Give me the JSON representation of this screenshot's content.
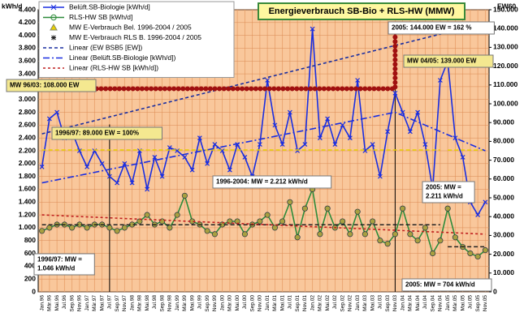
{
  "chart_data": {
    "type": "line",
    "title": "Energieverbrauch  SB-Bio + RLS-HW (MMW)",
    "y_label": "kWh/d",
    "y2_label": "EW60",
    "grid": true,
    "legend": "top-left",
    "categories": [
      "Jan.96",
      "Mär.96",
      "Mai.96",
      "Jul.96",
      "Sep.96",
      "Nov.96",
      "Jan.97",
      "Mär.97",
      "Mai.97",
      "Jul.97",
      "Sep.97",
      "Nov.97",
      "Jan.98",
      "Mär.98",
      "Mai.98",
      "Jul.98",
      "Sep.98",
      "Nov.98",
      "Jan.99",
      "Mär.99",
      "Mai.99",
      "Jul.99",
      "Sep.99",
      "Nov.99",
      "Jan.00",
      "Mär.00",
      "Mai.00",
      "Jul.00",
      "Sep.00",
      "Nov.00",
      "Jan.01",
      "Mär.01",
      "Mai.01",
      "Jul.01",
      "Sep.01",
      "Nov.01",
      "Jan.02",
      "Mär.02",
      "Mai.02",
      "Jul.02",
      "Sep.02",
      "Nov.02",
      "Jan.03",
      "Mär.03",
      "Mai.03",
      "Jul.03",
      "Sep.03",
      "Nov.03",
      "Jan.04",
      "Mär.04",
      "Mai.04",
      "Jul.04",
      "Sep.04",
      "Nov.04",
      "Jan.05",
      "Mär.05",
      "Mai.05",
      "Jul.05",
      "Sep.05",
      "Nov.05"
    ],
    "ylim": [
      0,
      4400
    ],
    "yticks": [
      0,
      200,
      400,
      600,
      800,
      {
        "value": 1000,
        "label": "1.000"
      },
      {
        "value": 1200,
        "label": "1.200"
      },
      {
        "value": 1400,
        "label": "1.400"
      },
      {
        "value": 1600,
        "label": "1.600"
      },
      {
        "value": 1800,
        "label": "1.800"
      },
      {
        "value": 2000,
        "label": "2.000"
      },
      {
        "value": 2200,
        "label": "2.200"
      },
      {
        "value": 2400,
        "label": "2.400"
      },
      {
        "value": 2600,
        "label": "2.600"
      },
      {
        "value": 2800,
        "label": "2.800"
      },
      {
        "value": 3000,
        "label": "3.000"
      },
      {
        "value": 3200,
        "label": "3.200"
      },
      {
        "value": 3400,
        "label": "3.400"
      },
      {
        "value": 3600,
        "label": "3.600"
      },
      {
        "value": 3800,
        "label": "3.800"
      },
      {
        "value": 4000,
        "label": "4.000"
      },
      {
        "value": 4200,
        "label": "4.200"
      },
      {
        "value": 4400,
        "label": "4.400"
      }
    ],
    "y2lim": [
      0,
      150000
    ],
    "y2ticks": [
      0,
      {
        "value": 10000,
        "label": "10.000"
      },
      {
        "value": 20000,
        "label": "20.000"
      },
      {
        "value": 30000,
        "label": "30.000"
      },
      {
        "value": 40000,
        "label": "40.000"
      },
      {
        "value": 50000,
        "label": "50.000"
      },
      {
        "value": 60000,
        "label": "60.000"
      },
      {
        "value": 70000,
        "label": "70.000"
      },
      {
        "value": 80000,
        "label": "80.000"
      },
      {
        "value": 90000,
        "label": "90.000"
      },
      {
        "value": 100000,
        "label": "100.000"
      },
      {
        "value": 110000,
        "label": "110.000"
      },
      {
        "value": 120000,
        "label": "120.000"
      },
      {
        "value": 130000,
        "label": "130.000"
      },
      {
        "value": 140000,
        "label": "140.000"
      },
      {
        "value": 150000,
        "label": "150.000"
      }
    ],
    "series": [
      {
        "name": "Belüft.SB-Biologie [kWh/d]",
        "color": "#1a2ee0",
        "marker": "x",
        "values": [
          1950,
          2700,
          2800,
          2400,
          2500,
          2200,
          1950,
          2200,
          2000,
          1800,
          1700,
          2000,
          1700,
          2200,
          1600,
          2100,
          1800,
          2250,
          2200,
          2100,
          1900,
          2400,
          2000,
          2300,
          2200,
          1900,
          2300,
          2100,
          1800,
          2300,
          3300,
          2600,
          2300,
          2800,
          2200,
          2300,
          4100,
          2400,
          2700,
          2300,
          2600,
          2400,
          3300,
          2200,
          2300,
          1800,
          2500,
          3100,
          2800,
          2500,
          2800,
          2300,
          1600,
          3300,
          3600,
          2400,
          2100,
          1400,
          1200,
          1400
        ]
      },
      {
        "name": "RLS-HW SB [kWh/d]",
        "color": "#2e8b3a",
        "marker": "o",
        "values": [
          950,
          1000,
          1050,
          1050,
          1000,
          1050,
          1000,
          1050,
          1050,
          1000,
          950,
          1000,
          1050,
          1100,
          1200,
          1050,
          1100,
          1000,
          1200,
          1500,
          1100,
          1050,
          950,
          900,
          1050,
          1100,
          1100,
          900,
          1050,
          1100,
          1200,
          1000,
          1100,
          1400,
          850,
          1300,
          1600,
          900,
          1300,
          1000,
          1100,
          900,
          1250,
          900,
          1100,
          800,
          750,
          900,
          1300,
          900,
          800,
          1000,
          600,
          800,
          1300,
          850,
          700,
          600,
          550,
          650
        ]
      },
      {
        "name": "MW E-Verbrauch Bel. 1996-2004 / 2005",
        "color": "#e8d000",
        "marker": "tri",
        "x": [
          "Jan.96",
          "Nov.04",
          null,
          "Jan.05",
          "Nov.05"
        ],
        "values": [
          2212,
          2212,
          null,
          2211,
          2211
        ]
      },
      {
        "name": "MW E-Verbrauch RLS B. 1996-2004 / 2005",
        "color": "#222222",
        "marker": "star",
        "x": [
          "Jan.96",
          "Nov.04",
          null,
          "Jan.05",
          "Nov.05"
        ],
        "values": [
          1046,
          1046,
          null,
          704,
          704
        ]
      },
      {
        "name": "Linear (EW BSB5 [EW])",
        "color": "#1a2ea0",
        "dash": "4 3",
        "axis": "y2",
        "x": [
          "Jan.96",
          "Nov.05"
        ],
        "values": [
          84000,
          143000
        ]
      },
      {
        "name": "Linear (Belüft.SB-Biologie [kWh/d])",
        "color": "#1a2ee0",
        "dash": "8 3 2 3",
        "x": [
          "Jan.96",
          "Nov.03",
          "Nov.05"
        ],
        "values": [
          1700,
          2800,
          2200
        ]
      },
      {
        "name": "Linear (RLS-HW SB [kWh/d])",
        "color": "#c02020",
        "dash": "3 3",
        "x": [
          "Jan.96",
          "Nov.05"
        ],
        "values": [
          1200,
          900
        ]
      },
      {
        "color": "#a01010",
        "marker": "dot",
        "axis": "y2",
        "x": [
          "Jan.96",
          "Nov.03",
          "Nov.03",
          "Nov.05"
        ],
        "values": [
          108000,
          108000,
          139000,
          139000
        ]
      }
    ],
    "annotations": [
      [
        "MW 96/03: 108.000 EW"
      ],
      [
        "1996/97: 89.000 EW = 100%"
      ],
      [
        "1996-2004: MW = 2.212 kWh/d"
      ],
      [
        "2005: MW =",
        "2.211 kWh/d"
      ],
      [
        "1996/97: MW =",
        "1.046 kWh/d"
      ],
      [
        "2005: MW = 704 kWh/d"
      ],
      [
        "2005: 144.000 EW = 162 %"
      ],
      [
        "MW 04/05: 139.000 EW"
      ]
    ]
  }
}
